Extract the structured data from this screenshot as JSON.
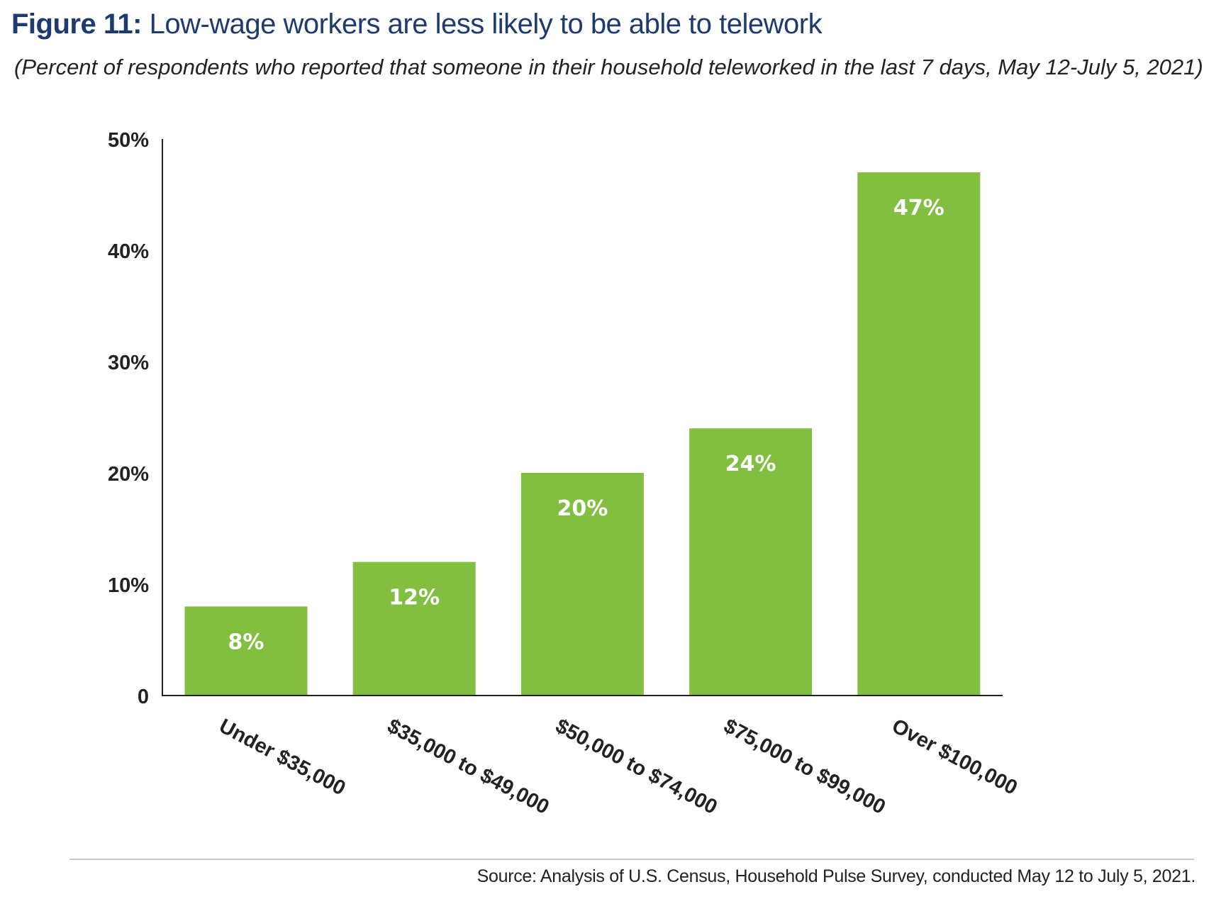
{
  "figure": {
    "label": "Figure 11:",
    "title": "Low-wage workers are less likely to be able to telework",
    "subtitle": "(Percent of respondents who reported that someone in their household teleworked in the last 7 days, May 12-July 5, 2021)",
    "source": "Source: Analysis of U.S. Census, Household Pulse Survey, conducted May 12 to July 5, 2021."
  },
  "chart_data": {
    "type": "bar",
    "categories": [
      "Under $35,000",
      "$35,000 to $49,000",
      "$50,000 to $74,000",
      "$75,000 to $99,000",
      "Over $100,000"
    ],
    "values": [
      8,
      12,
      20,
      24,
      47
    ],
    "data_labels": [
      "8%",
      "12%",
      "20%",
      "24%",
      "47%"
    ],
    "yticks": [
      0,
      10,
      20,
      30,
      40,
      50
    ],
    "ytick_labels": [
      "0",
      "10%",
      "20%",
      "30%",
      "40%",
      "50%"
    ],
    "ylim": [
      0,
      50
    ],
    "bar_color": "#82bf41",
    "grid": false,
    "legend": "none"
  }
}
